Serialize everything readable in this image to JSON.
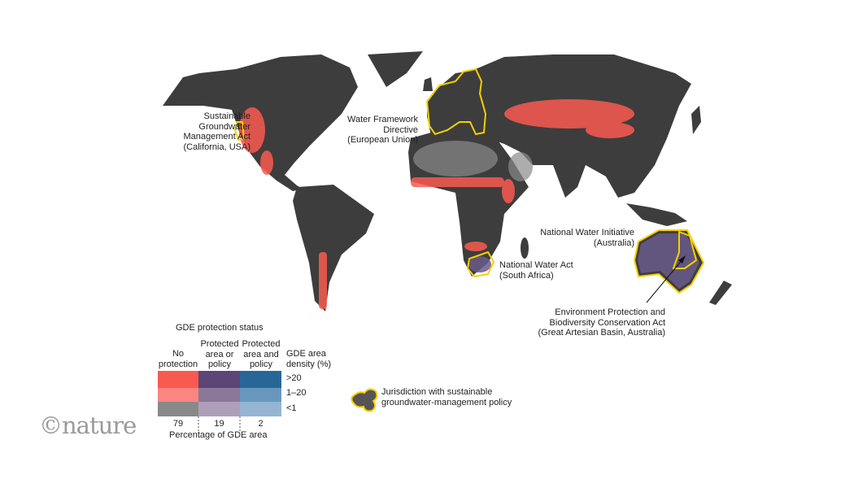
{
  "map": {
    "colors": {
      "land": "#3d3d3d",
      "ocean": "#ffffff",
      "jurisdiction_outline": "#f5d000"
    },
    "annotations": {
      "california": "Sustainable\nGroundwater\nManagement Act\n(California, USA)",
      "eu": "Water Framework\nDirective\n(European Union)",
      "australia_nwi": "National Water Initiative\n(Australia)",
      "south_africa": "National Water Act\n(South Africa)",
      "gab": "Environment Protection and\nBiodiversity Conservation Act\n(Great Artesian Basin, Australia)"
    }
  },
  "legend": {
    "title": "GDE protection status",
    "columns": [
      "No\nprotection",
      "Protected\narea or\npolicy",
      "Protected\narea and\npolicy"
    ],
    "density_title": "GDE area\ndensity (%)",
    "rows": [
      ">20",
      "1–20",
      "<1"
    ],
    "colors": [
      [
        "#f95a4f",
        "#5c4577",
        "#276798"
      ],
      [
        "#fb8680",
        "#8a7799",
        "#6797bd"
      ],
      [
        "#898989",
        "#ad9fb9",
        "#95b5d2"
      ]
    ],
    "percentages": [
      "79",
      "19",
      "2"
    ],
    "percentage_label": "Percentage of GDE area",
    "jurisdiction_label": "Jurisdiction with sustainable\ngroundwater-management policy"
  },
  "logo": "©nature"
}
